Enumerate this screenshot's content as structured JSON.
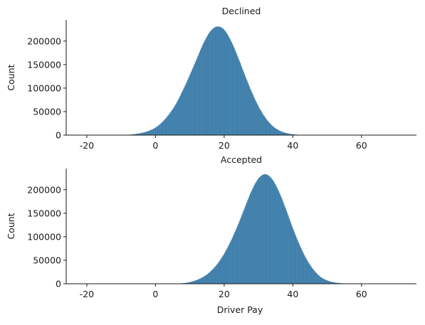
{
  "chart_data": [
    {
      "type": "bar",
      "title": "Declined",
      "xlabel": "",
      "ylabel": "Count",
      "xlim": [
        -26,
        76
      ],
      "ylim": [
        0,
        245000
      ],
      "xticks": [
        "-20",
        "0",
        "20",
        "40",
        "60"
      ],
      "xtick_values": [
        -20,
        0,
        20,
        40,
        60
      ],
      "yticks": [
        "0",
        "50000",
        "100000",
        "150000",
        "200000"
      ],
      "ytick_values": [
        0,
        50000,
        100000,
        150000,
        200000
      ],
      "grid": false,
      "color": "#3f7fab",
      "distribution": {
        "x": [
          -8,
          -6,
          -4,
          -2,
          0,
          2,
          4,
          6,
          8,
          10,
          12,
          14,
          16,
          18,
          20,
          22,
          24,
          26,
          28,
          30,
          32,
          34,
          36,
          38,
          40,
          42,
          44
        ],
        "values": [
          800,
          2200,
          4800,
          9000,
          16000,
          28000,
          45000,
          67000,
          96000,
          128000,
          162000,
          196000,
          221000,
          231000,
          224000,
          200000,
          166000,
          128000,
          92000,
          61000,
          37000,
          20000,
          10000,
          4500,
          1800,
          600,
          200
        ]
      }
    },
    {
      "type": "bar",
      "title": "Accepted",
      "xlabel": "Driver Pay",
      "ylabel": "Count",
      "xlim": [
        -26,
        76
      ],
      "ylim": [
        0,
        245000
      ],
      "xticks": [
        "-20",
        "0",
        "20",
        "40",
        "60"
      ],
      "xtick_values": [
        -20,
        0,
        20,
        40,
        60
      ],
      "yticks": [
        "0",
        "50000",
        "100000",
        "150000",
        "200000"
      ],
      "ytick_values": [
        0,
        50000,
        100000,
        150000,
        200000
      ],
      "grid": false,
      "color": "#3f7fab",
      "distribution": {
        "x": [
          6,
          8,
          10,
          12,
          14,
          16,
          18,
          20,
          22,
          24,
          26,
          28,
          30,
          32,
          34,
          36,
          38,
          40,
          42,
          44,
          46,
          48,
          50,
          52,
          54,
          56,
          58,
          60
        ],
        "values": [
          300,
          1200,
          3500,
          8000,
          15000,
          26000,
          42000,
          64000,
          92000,
          125000,
          162000,
          198000,
          224000,
          233000,
          222000,
          195000,
          158000,
          118000,
          82000,
          52000,
          30000,
          15000,
          7000,
          3000,
          1200,
          400,
          150,
          50
        ]
      }
    }
  ]
}
